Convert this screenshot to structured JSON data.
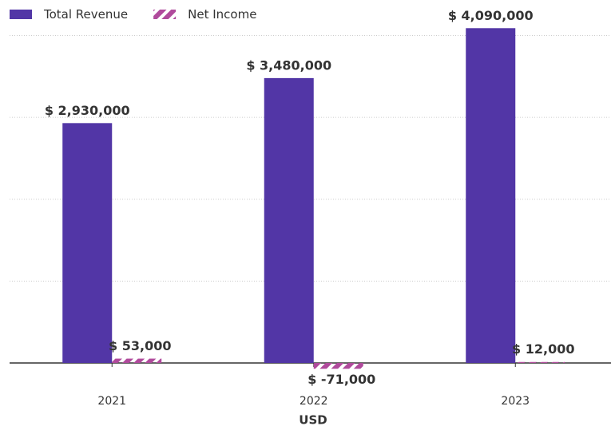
{
  "chart_data": {
    "type": "bar",
    "x_label": "USD",
    "categories": [
      "2021",
      "2022",
      "2023"
    ],
    "series": [
      {
        "name": "Total Revenue",
        "color": "#5236a6",
        "values": [
          2930000,
          3480000,
          4090000
        ],
        "value_labels": [
          "$ 2,930,000",
          "$ 3,480,000",
          "$ 4,090,000"
        ]
      },
      {
        "name": "Net Income",
        "color": "#b04a9c",
        "hatch": true,
        "values": [
          53000,
          -71000,
          12000
        ],
        "value_labels": [
          "$ 53,000",
          "$ -71,000",
          "$ 12,000"
        ]
      }
    ],
    "ylim": [
      -200000,
      4200000
    ],
    "yticks": [
      0,
      1000000,
      2000000,
      3000000,
      4000000
    ],
    "grid": true,
    "legend": "top-left"
  }
}
